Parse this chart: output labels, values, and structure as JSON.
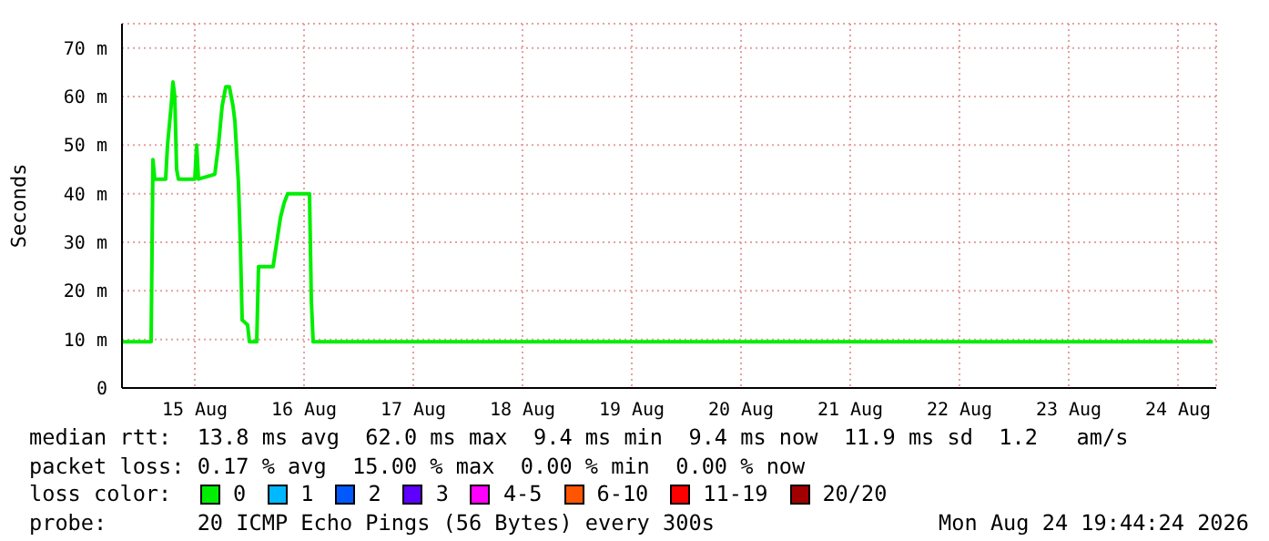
{
  "chart_data": {
    "type": "line",
    "ylabel": "Seconds",
    "xlim": [
      "2026-08-14T20:00",
      "2026-08-24T20:24"
    ],
    "xticks": [
      {
        "value": "2026-08-15T12:00",
        "label": "15 Aug"
      },
      {
        "value": "2026-08-16T12:00",
        "label": "16 Aug"
      },
      {
        "value": "2026-08-17T12:00",
        "label": "17 Aug"
      },
      {
        "value": "2026-08-18T12:00",
        "label": "18 Aug"
      },
      {
        "value": "2026-08-19T12:00",
        "label": "19 Aug"
      },
      {
        "value": "2026-08-20T12:00",
        "label": "20 Aug"
      },
      {
        "value": "2026-08-21T12:00",
        "label": "21 Aug"
      },
      {
        "value": "2026-08-22T12:00",
        "label": "22 Aug"
      },
      {
        "value": "2026-08-23T12:00",
        "label": "23 Aug"
      },
      {
        "value": "2026-08-24T12:00",
        "label": "24 Aug"
      }
    ],
    "ylim": [
      0,
      75
    ],
    "yticks": [
      0,
      {
        "value": 10,
        "label": "10 m"
      },
      {
        "value": 20,
        "label": "20 m"
      },
      {
        "value": 30,
        "label": "30 m"
      },
      {
        "value": 40,
        "label": "40 m"
      },
      {
        "value": 50,
        "label": "50 m"
      },
      {
        "value": 60,
        "label": "60 m"
      },
      {
        "value": 70,
        "label": "70 m"
      }
    ],
    "grid": true,
    "legend": "bottom",
    "legend_title": "loss color:",
    "series": [
      {
        "name": "0",
        "color": "#00ee00",
        "x": [
          "2026-08-14T20:00",
          "2026-08-15T02:24",
          "2026-08-15T02:48",
          "2026-08-15T03:12",
          "2026-08-15T05:36",
          "2026-08-15T06:00",
          "2026-08-15T06:48",
          "2026-08-15T07:12",
          "2026-08-15T07:36",
          "2026-08-15T08:00",
          "2026-08-15T08:24",
          "2026-08-15T12:00",
          "2026-08-15T12:24",
          "2026-08-15T12:48",
          "2026-08-15T16:24",
          "2026-08-15T17:12",
          "2026-08-15T18:00",
          "2026-08-15T18:48",
          "2026-08-15T19:36",
          "2026-08-15T20:24",
          "2026-08-15T20:48",
          "2026-08-15T21:36",
          "2026-08-15T22:00",
          "2026-08-15T22:24",
          "2026-08-15T23:36",
          "2026-08-16T00:00",
          "2026-08-16T01:36",
          "2026-08-16T02:00",
          "2026-08-16T05:12",
          "2026-08-16T06:00",
          "2026-08-16T06:48",
          "2026-08-16T07:36",
          "2026-08-16T08:24",
          "2026-08-16T13:12",
          "2026-08-16T13:36",
          "2026-08-16T14:00",
          "2026-08-24T19:40"
        ],
        "values": [
          9.5,
          9.5,
          47,
          43,
          43,
          50,
          58,
          63,
          60,
          45,
          43,
          43,
          50,
          43,
          44,
          50,
          58,
          62,
          62,
          58,
          55,
          42,
          30,
          14,
          13,
          9.5,
          9.5,
          25,
          25,
          30,
          35,
          38,
          40,
          40,
          18,
          9.5,
          9.5
        ]
      },
      {
        "name": "1",
        "color": "#00b8ff"
      },
      {
        "name": "2",
        "color": "#0059ff"
      },
      {
        "name": "3",
        "color": "#5e00ff"
      },
      {
        "name": "4-5",
        "color": "#ff00ff"
      },
      {
        "name": "6-10",
        "color": "#ff5500"
      },
      {
        "name": "11-19",
        "color": "#ff0000"
      },
      {
        "name": "20/20",
        "color": "#a10000"
      }
    ],
    "annotations": [
      "median rtt:  13.8 ms avg  62.0 ms max  9.4 ms min  9.4 ms now  11.9 ms sd  1.2   am/s",
      "packet loss: 0.17 % avg  15.00 % max  0.00 % min  0.00 % now",
      "probe:       20 ICMP Echo Pings (56 Bytes) every 300s",
      "Mon Aug 24 19:44:24 2026"
    ]
  }
}
